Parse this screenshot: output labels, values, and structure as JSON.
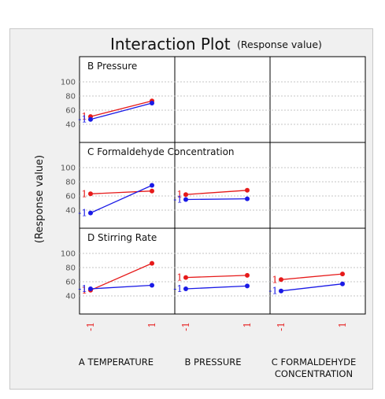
{
  "chart_data": {
    "type": "line",
    "title": "Interaction Plot",
    "subtitle": "(Response value)",
    "ylabel": "(Response value)",
    "yticks": [
      40,
      60,
      80,
      100
    ],
    "ylim": [
      30,
      110
    ],
    "x_levels": [
      "-1",
      "1"
    ],
    "colors": {
      "-1": "#1a1ae6",
      "1": "#e61a1a"
    },
    "factors": [
      "A TEMPERATURE",
      "B PRESSURE",
      "C FORMALDEHYDE CONCENTRATION"
    ],
    "rows": [
      {
        "label": "B Pressure",
        "panels": [
          {
            "col": 0,
            "series": [
              {
                "name": "1",
                "values": [
                  51,
                  73
                ]
              },
              {
                "name": "-1",
                "values": [
                  47,
                  70
                ]
              }
            ]
          }
        ]
      },
      {
        "label": "C Formaldehyde Concentration",
        "panels": [
          {
            "col": 0,
            "series": [
              {
                "name": "1",
                "values": [
                  63,
                  67
                ]
              },
              {
                "name": "-1",
                "values": [
                  36,
                  75
                ]
              }
            ]
          },
          {
            "col": 1,
            "series": [
              {
                "name": "1",
                "values": [
                  62,
                  68
                ]
              },
              {
                "name": "-1",
                "values": [
                  55,
                  56
                ]
              }
            ]
          }
        ]
      },
      {
        "label": "D Stirring Rate",
        "panels": [
          {
            "col": 0,
            "series": [
              {
                "name": "1",
                "values": [
                  48,
                  86
                ]
              },
              {
                "name": "-1",
                "values": [
                  50,
                  55
                ]
              }
            ]
          },
          {
            "col": 1,
            "series": [
              {
                "name": "1",
                "values": [
                  66,
                  69
                ]
              },
              {
                "name": "-1",
                "values": [
                  50,
                  54
                ]
              }
            ]
          },
          {
            "col": 2,
            "series": [
              {
                "name": "1",
                "values": [
                  63,
                  71
                ]
              },
              {
                "name": "-1",
                "values": [
                  47,
                  57
                ]
              }
            ]
          }
        ]
      }
    ],
    "x_axis_labels": [
      "A TEMPERATURE",
      "B PRESSURE",
      "C FORMALDEHYDE",
      "CONCENTRATION"
    ]
  }
}
